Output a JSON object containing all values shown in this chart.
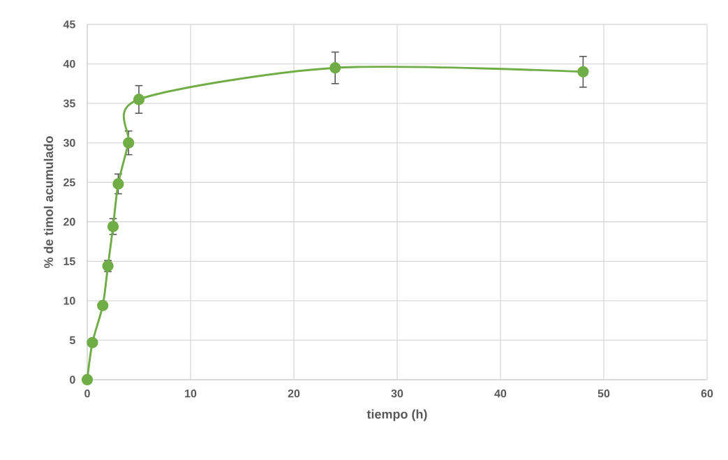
{
  "chart_data": {
    "type": "line",
    "xlabel": "tiempo (h)",
    "ylabel": "% de timol acumulado",
    "x": [
      0,
      0.5,
      1.5,
      2,
      2.5,
      3,
      4,
      5,
      24,
      48
    ],
    "series": [
      {
        "color": "#70ad47",
        "values": [
          0,
          4.7,
          9.4,
          14.4,
          19.4,
          24.8,
          30,
          35.5,
          39.5,
          39
        ],
        "errors": [
          null,
          null,
          null,
          0.7,
          1,
          1.25,
          1.5,
          1.75,
          2,
          1.95
        ]
      }
    ],
    "xlim": [
      0,
      60
    ],
    "xticks": [
      0,
      10,
      20,
      30,
      40,
      50,
      60
    ],
    "ylim": [
      0,
      45
    ],
    "yticks": [
      0,
      5,
      10,
      15,
      20,
      25,
      30,
      35,
      40,
      45
    ],
    "grid": true,
    "marker": "circle",
    "line_style": "solid"
  }
}
